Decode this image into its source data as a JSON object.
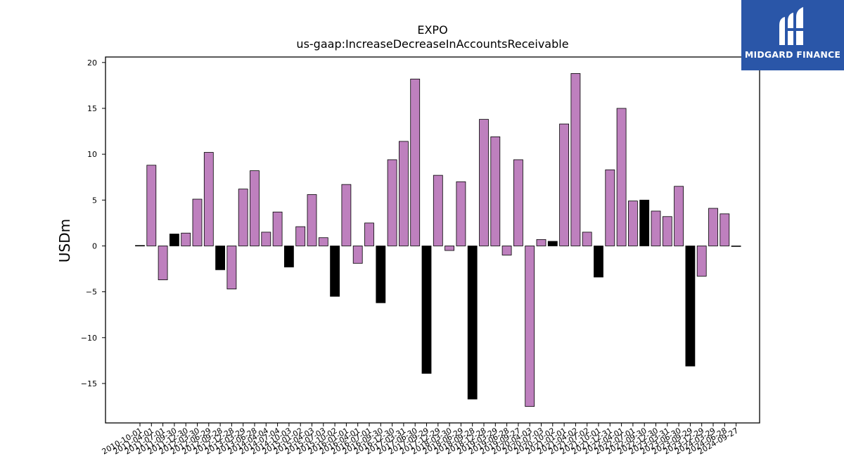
{
  "chart_data": {
    "type": "bar",
    "title": "EXPO",
    "subtitle": "us-gaap:IncreaseDecreaseInAccountsReceivable",
    "xlabel": "",
    "ylabel": "USDm",
    "ylim": [
      -19.3,
      20.6
    ],
    "yticks": [
      -15,
      -10,
      -5,
      0,
      5,
      10,
      15,
      20
    ],
    "grid": false,
    "categories": [
      "2010-10-01",
      "2011-04-01",
      "2011-07-01",
      "2011-09-30",
      "2011-12-30",
      "2012-03-30",
      "2012-06-29",
      "2012-09-28",
      "2012-12-28",
      "2013-03-29",
      "2013-06-28",
      "2014-04-04",
      "2014-07-04",
      "2014-10-03",
      "2015-01-02",
      "2015-04-03",
      "2015-07-03",
      "2015-10-02",
      "2016-01-01",
      "2016-04-01",
      "2016-07-01",
      "2016-09-30",
      "2016-12-30",
      "2017-03-31",
      "2017-06-30",
      "2017-09-29",
      "2017-12-29",
      "2018-03-30",
      "2018-06-29",
      "2018-09-28",
      "2018-12-28",
      "2019-03-29",
      "2019-06-28",
      "2019-09-27",
      "2020-04-03",
      "2020-07-03",
      "2020-10-02",
      "2021-01-01",
      "2021-04-02",
      "2021-07-02",
      "2021-10-01",
      "2021-12-31",
      "2022-04-01",
      "2022-07-01",
      "2022-09-30",
      "2022-12-30",
      "2023-03-31",
      "2023-06-30",
      "2023-09-29",
      "2023-12-29",
      "2024-03-29",
      "2024-06-28",
      "2024-09-27"
    ],
    "values": [
      0.05,
      8.8,
      -3.7,
      1.3,
      1.4,
      5.1,
      10.2,
      -2.6,
      -4.7,
      6.2,
      8.2,
      1.5,
      3.7,
      -2.3,
      2.1,
      5.6,
      0.9,
      -5.5,
      6.7,
      -1.9,
      2.5,
      -6.2,
      9.4,
      11.4,
      18.2,
      -13.9,
      7.7,
      -0.5,
      7.0,
      -16.7,
      13.8,
      11.9,
      -1.0,
      9.4,
      -17.5,
      0.7,
      0.5,
      13.3,
      18.8,
      1.5,
      -3.4,
      8.3,
      15.0,
      4.9,
      5.0,
      3.8,
      3.2,
      6.5,
      -13.1,
      -3.3,
      4.1,
      3.5,
      0
    ],
    "bar_colors": [
      "#000000",
      "#be80be",
      "#be80be",
      "#000000",
      "#be80be",
      "#be80be",
      "#be80be",
      "#000000",
      "#be80be",
      "#be80be",
      "#be80be",
      "#be80be",
      "#be80be",
      "#000000",
      "#be80be",
      "#be80be",
      "#be80be",
      "#000000",
      "#be80be",
      "#be80be",
      "#be80be",
      "#000000",
      "#be80be",
      "#be80be",
      "#be80be",
      "#000000",
      "#be80be",
      "#be80be",
      "#be80be",
      "#000000",
      "#be80be",
      "#be80be",
      "#be80be",
      "#be80be",
      "#be80be",
      "#be80be",
      "#000000",
      "#be80be",
      "#be80be",
      "#be80be",
      "#000000",
      "#be80be",
      "#be80be",
      "#be80be",
      "#000000",
      "#be80be",
      "#be80be",
      "#be80be",
      "#000000",
      "#be80be",
      "#be80be",
      "#be80be",
      "#be80be"
    ]
  },
  "logo": {
    "text": "MIDGARD FINANCE",
    "background": "#2a56a8",
    "icon": "midgard-m-logo-icon"
  }
}
